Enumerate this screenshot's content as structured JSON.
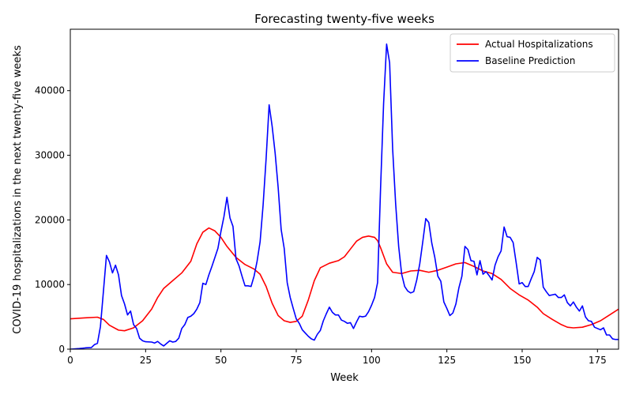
{
  "chart_data": {
    "type": "line",
    "title": "Forecasting twenty-five weeks",
    "xlabel": "Week",
    "ylabel": "COVID-19 hospitalizations in the next twenty-five weeks",
    "xlim": [
      0,
      182
    ],
    "ylim": [
      0,
      49500
    ],
    "xticks": [
      0,
      25,
      50,
      75,
      100,
      125,
      150,
      175
    ],
    "yticks": [
      0,
      10000,
      20000,
      30000,
      40000
    ],
    "grid": false,
    "legend_position": "top-right",
    "series": [
      {
        "name": "Actual Hospitalizations",
        "color": "#ff0000",
        "points": [
          [
            0,
            4700
          ],
          [
            5,
            4850
          ],
          [
            9,
            4950
          ],
          [
            11,
            4600
          ],
          [
            13,
            3700
          ],
          [
            16,
            2950
          ],
          [
            18,
            2850
          ],
          [
            21,
            3300
          ],
          [
            24,
            4400
          ],
          [
            27,
            6200
          ],
          [
            29,
            8000
          ],
          [
            31,
            9400
          ],
          [
            34,
            10600
          ],
          [
            37,
            11800
          ],
          [
            40,
            13600
          ],
          [
            42,
            16300
          ],
          [
            44,
            18100
          ],
          [
            46,
            18750
          ],
          [
            48,
            18300
          ],
          [
            50,
            17300
          ],
          [
            52,
            15900
          ],
          [
            55,
            14200
          ],
          [
            58,
            13100
          ],
          [
            61,
            12400
          ],
          [
            63,
            11600
          ],
          [
            65,
            9700
          ],
          [
            67,
            7100
          ],
          [
            69,
            5200
          ],
          [
            71,
            4400
          ],
          [
            73,
            4150
          ],
          [
            75,
            4300
          ],
          [
            77,
            5100
          ],
          [
            79,
            7600
          ],
          [
            81,
            10600
          ],
          [
            83,
            12600
          ],
          [
            86,
            13300
          ],
          [
            89,
            13700
          ],
          [
            91,
            14300
          ],
          [
            93,
            15500
          ],
          [
            95,
            16700
          ],
          [
            97,
            17300
          ],
          [
            99,
            17500
          ],
          [
            101,
            17300
          ],
          [
            102,
            16800
          ],
          [
            103,
            15700
          ],
          [
            105,
            13200
          ],
          [
            107,
            11900
          ],
          [
            110,
            11700
          ],
          [
            113,
            12100
          ],
          [
            116,
            12200
          ],
          [
            119,
            11900
          ],
          [
            122,
            12200
          ],
          [
            125,
            12700
          ],
          [
            128,
            13200
          ],
          [
            131,
            13400
          ],
          [
            134,
            12800
          ],
          [
            137,
            12100
          ],
          [
            140,
            11700
          ],
          [
            143,
            10800
          ],
          [
            146,
            9400
          ],
          [
            149,
            8400
          ],
          [
            152,
            7600
          ],
          [
            155,
            6500
          ],
          [
            157,
            5500
          ],
          [
            160,
            4600
          ],
          [
            163,
            3800
          ],
          [
            165,
            3400
          ],
          [
            167,
            3300
          ],
          [
            170,
            3400
          ],
          [
            173,
            3800
          ],
          [
            176,
            4400
          ],
          [
            179,
            5300
          ],
          [
            182,
            6200
          ]
        ]
      },
      {
        "name": "Baseline Prediction",
        "color": "#0000ff",
        "points": [
          [
            0,
            0
          ],
          [
            3,
            100
          ],
          [
            5,
            200
          ],
          [
            7,
            250
          ],
          [
            8,
            700
          ],
          [
            9,
            900
          ],
          [
            10,
            3500
          ],
          [
            11,
            9000
          ],
          [
            12,
            14500
          ],
          [
            13,
            13500
          ],
          [
            14,
            11800
          ],
          [
            15,
            13000
          ],
          [
            16,
            11500
          ],
          [
            17,
            8300
          ],
          [
            18,
            7000
          ],
          [
            19,
            5300
          ],
          [
            20,
            5900
          ],
          [
            21,
            3800
          ],
          [
            22,
            3200
          ],
          [
            23,
            1700
          ],
          [
            24,
            1300
          ],
          [
            25,
            1150
          ],
          [
            27,
            1100
          ],
          [
            28,
            950
          ],
          [
            29,
            1200
          ],
          [
            30,
            800
          ],
          [
            31,
            500
          ],
          [
            32,
            900
          ],
          [
            33,
            1300
          ],
          [
            34,
            1100
          ],
          [
            35,
            1200
          ],
          [
            36,
            1700
          ],
          [
            37,
            3200
          ],
          [
            38,
            3800
          ],
          [
            39,
            4900
          ],
          [
            40,
            5100
          ],
          [
            41,
            5500
          ],
          [
            42,
            6200
          ],
          [
            43,
            7200
          ],
          [
            44,
            10200
          ],
          [
            45,
            10000
          ],
          [
            46,
            11500
          ],
          [
            47,
            12800
          ],
          [
            48,
            14200
          ],
          [
            49,
            15600
          ],
          [
            50,
            18200
          ],
          [
            51,
            20500
          ],
          [
            52,
            23500
          ],
          [
            53,
            20300
          ],
          [
            54,
            19000
          ],
          [
            55,
            14000
          ],
          [
            56,
            12900
          ],
          [
            57,
            11300
          ],
          [
            58,
            9800
          ],
          [
            59,
            9800
          ],
          [
            60,
            9700
          ],
          [
            61,
            11300
          ],
          [
            62,
            13600
          ],
          [
            63,
            16600
          ],
          [
            64,
            22300
          ],
          [
            65,
            29500
          ],
          [
            66,
            37800
          ],
          [
            67,
            34500
          ],
          [
            68,
            30300
          ],
          [
            69,
            25000
          ],
          [
            70,
            18500
          ],
          [
            71,
            15600
          ],
          [
            72,
            10300
          ],
          [
            73,
            8000
          ],
          [
            74,
            6300
          ],
          [
            75,
            4700
          ],
          [
            76,
            4000
          ],
          [
            77,
            3000
          ],
          [
            78,
            2500
          ],
          [
            79,
            2000
          ],
          [
            80,
            1600
          ],
          [
            81,
            1400
          ],
          [
            82,
            2300
          ],
          [
            83,
            2900
          ],
          [
            84,
            4400
          ],
          [
            85,
            5500
          ],
          [
            86,
            6500
          ],
          [
            87,
            5700
          ],
          [
            88,
            5300
          ],
          [
            89,
            5300
          ],
          [
            90,
            4500
          ],
          [
            91,
            4300
          ],
          [
            92,
            4000
          ],
          [
            93,
            4100
          ],
          [
            94,
            3200
          ],
          [
            95,
            4200
          ],
          [
            96,
            5100
          ],
          [
            97,
            5000
          ],
          [
            98,
            5100
          ],
          [
            99,
            5800
          ],
          [
            100,
            6800
          ],
          [
            101,
            8000
          ],
          [
            102,
            10300
          ],
          [
            103,
            25000
          ],
          [
            104,
            38000
          ],
          [
            105,
            47200
          ],
          [
            106,
            44300
          ],
          [
            107,
            31000
          ],
          [
            108,
            22500
          ],
          [
            109,
            15900
          ],
          [
            110,
            11600
          ],
          [
            111,
            9700
          ],
          [
            112,
            9000
          ],
          [
            113,
            8700
          ],
          [
            114,
            8900
          ],
          [
            115,
            10700
          ],
          [
            116,
            13200
          ],
          [
            117,
            16600
          ],
          [
            118,
            20200
          ],
          [
            119,
            19600
          ],
          [
            120,
            16400
          ],
          [
            121,
            14200
          ],
          [
            122,
            11300
          ],
          [
            123,
            10500
          ],
          [
            124,
            7300
          ],
          [
            125,
            6300
          ],
          [
            126,
            5200
          ],
          [
            127,
            5600
          ],
          [
            128,
            7000
          ],
          [
            129,
            9500
          ],
          [
            130,
            11300
          ],
          [
            131,
            15900
          ],
          [
            132,
            15400
          ],
          [
            133,
            13700
          ],
          [
            134,
            13600
          ],
          [
            135,
            11500
          ],
          [
            136,
            13700
          ],
          [
            137,
            11600
          ],
          [
            138,
            12000
          ],
          [
            139,
            11400
          ],
          [
            140,
            10700
          ],
          [
            141,
            13000
          ],
          [
            142,
            14300
          ],
          [
            143,
            15200
          ],
          [
            144,
            18900
          ],
          [
            145,
            17400
          ],
          [
            146,
            17300
          ],
          [
            147,
            16500
          ],
          [
            148,
            13400
          ],
          [
            149,
            10100
          ],
          [
            150,
            10300
          ],
          [
            151,
            9700
          ],
          [
            152,
            9700
          ],
          [
            153,
            10900
          ],
          [
            154,
            12000
          ],
          [
            155,
            14200
          ],
          [
            156,
            13800
          ],
          [
            157,
            9600
          ],
          [
            158,
            8900
          ],
          [
            159,
            8300
          ],
          [
            160,
            8400
          ],
          [
            161,
            8500
          ],
          [
            162,
            8000
          ],
          [
            163,
            8000
          ],
          [
            164,
            8400
          ],
          [
            165,
            7200
          ],
          [
            166,
            6700
          ],
          [
            167,
            7300
          ],
          [
            168,
            6500
          ],
          [
            169,
            5900
          ],
          [
            170,
            6700
          ],
          [
            171,
            5000
          ],
          [
            172,
            4400
          ],
          [
            173,
            4300
          ],
          [
            174,
            3400
          ],
          [
            175,
            3200
          ],
          [
            176,
            3000
          ],
          [
            177,
            3300
          ],
          [
            178,
            2200
          ],
          [
            179,
            2200
          ],
          [
            180,
            1600
          ],
          [
            181,
            1500
          ],
          [
            182,
            1500
          ]
        ]
      }
    ]
  }
}
